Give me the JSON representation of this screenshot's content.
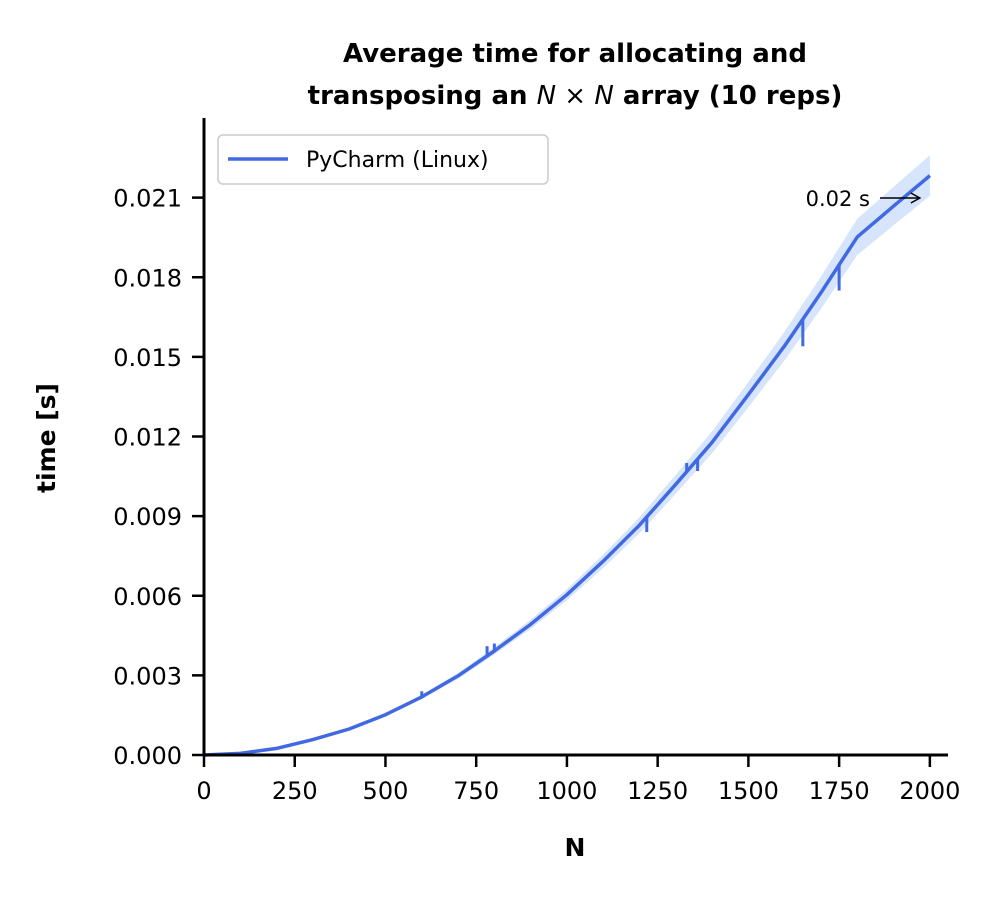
{
  "chart_data": {
    "type": "line",
    "title_line1": "Average time for allocating and",
    "title_line2_prefix": "transposing an ",
    "title_line2_math_n1": "N",
    "title_line2_math_times": " × ",
    "title_line2_math_n2": "N",
    "title_line2_suffix": " array (10 reps)",
    "xlabel": "N",
    "ylabel": "time [s]",
    "xlim": [
      0,
      2050
    ],
    "ylim": [
      0,
      0.024
    ],
    "xticks": [
      0,
      250,
      500,
      750,
      1000,
      1250,
      1500,
      1750,
      2000
    ],
    "xtick_labels": [
      "0",
      "250",
      "500",
      "750",
      "1000",
      "1250",
      "1500",
      "1750",
      "2000"
    ],
    "yticks": [
      0,
      0.003,
      0.006,
      0.009,
      0.012,
      0.015,
      0.018,
      0.021
    ],
    "ytick_labels": [
      "0.000",
      "0.003",
      "0.006",
      "0.009",
      "0.012",
      "0.015",
      "0.018",
      "0.021"
    ],
    "grid": false,
    "legend_position": "top-left",
    "series": [
      {
        "name": "PyCharm (Linux)",
        "color": "#4169e1",
        "band_color": "#cfe0fb",
        "x": [
          0,
          100,
          200,
          300,
          400,
          500,
          600,
          700,
          800,
          900,
          1000,
          1100,
          1200,
          1300,
          1400,
          1500,
          1600,
          1700,
          1800,
          1900,
          2000
        ],
        "y": [
          0,
          6e-05,
          0.00025,
          0.00058,
          0.00098,
          0.00152,
          0.00219,
          0.00298,
          0.00392,
          0.00492,
          0.00604,
          0.0073,
          0.00866,
          0.0102,
          0.01178,
          0.01358,
          0.01542,
          0.01742,
          0.01952,
          0.02068,
          0.02183
        ],
        "spikes": [
          {
            "x": 600,
            "y": 0.0024
          },
          {
            "x": 780,
            "y": 0.0041
          },
          {
            "x": 800,
            "y": 0.0042
          },
          {
            "x": 830,
            "y": 0.0042
          },
          {
            "x": 1220,
            "y": 0.0084
          },
          {
            "x": 1330,
            "y": 0.011
          },
          {
            "x": 1360,
            "y": 0.0107
          },
          {
            "x": 1650,
            "y": 0.0154
          },
          {
            "x": 1750,
            "y": 0.0175
          },
          {
            "x": 1920,
            "y": 0.021
          }
        ]
      }
    ],
    "annotation": {
      "text": "0.02 s",
      "arrow_to": {
        "x": 2000,
        "y": 0.0219
      }
    }
  }
}
